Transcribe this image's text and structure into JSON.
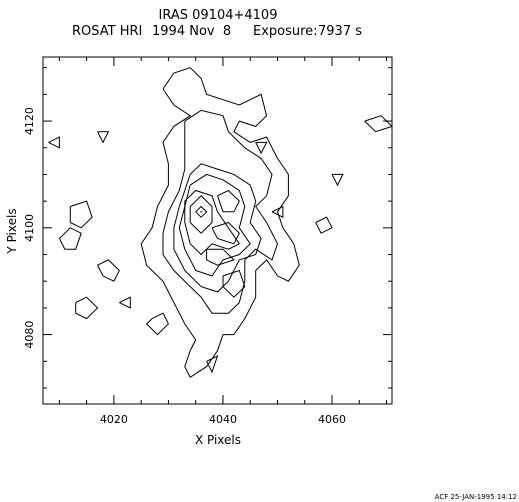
{
  "chart_data": {
    "type": "contour",
    "title": "IRAS 09104+4109",
    "subtitle": {
      "instrument": "ROSAT HRI",
      "date": "1994 Nov  8",
      "exposure_label": "Exposure:",
      "exposure_value": "7937 s"
    },
    "xlabel": "X Pixels",
    "ylabel": "Y Pixels",
    "xlim": [
      4007,
      4071
    ],
    "ylim": [
      4067,
      4132
    ],
    "xticks": [
      4020,
      4040,
      4060
    ],
    "yticks": [
      4080,
      4100,
      4120
    ],
    "grid": false,
    "footer": "ACF 25-JAN-1995 14:12",
    "peak": {
      "x": 4036,
      "y": 4103
    },
    "contours": [
      {
        "level": 1,
        "points": [
          [
            4029,
            4126
          ],
          [
            4031,
            4129
          ],
          [
            4034,
            4130
          ],
          [
            4036,
            4128
          ],
          [
            4037,
            4125
          ],
          [
            4040,
            4124
          ],
          [
            4043,
            4123
          ],
          [
            4045,
            4124
          ],
          [
            4047,
            4125
          ],
          [
            4048,
            4121
          ],
          [
            4046,
            4119
          ],
          [
            4043,
            4120
          ],
          [
            4042,
            4118
          ],
          [
            4045,
            4116
          ],
          [
            4048,
            4117
          ],
          [
            4050,
            4113
          ],
          [
            4052,
            4110
          ],
          [
            4052,
            4106
          ],
          [
            4050,
            4103
          ],
          [
            4051,
            4100
          ],
          [
            4053,
            4097
          ],
          [
            4054,
            4093
          ],
          [
            4052,
            4090
          ],
          [
            4050,
            4091
          ],
          [
            4048,
            4094
          ],
          [
            4046,
            4092
          ],
          [
            4046,
            4087
          ],
          [
            4044,
            4083
          ],
          [
            4042,
            4080
          ],
          [
            4040,
            4080
          ],
          [
            4039,
            4077
          ],
          [
            4037,
            4074
          ],
          [
            4034,
            4072
          ],
          [
            4033,
            4074
          ],
          [
            4034,
            4077
          ],
          [
            4035,
            4079
          ],
          [
            4033,
            4082
          ],
          [
            4031,
            4086
          ],
          [
            4029,
            4090
          ],
          [
            4026,
            4093
          ],
          [
            4025,
            4097
          ],
          [
            4027,
            4100
          ],
          [
            4028,
            4104
          ],
          [
            4030,
            4108
          ],
          [
            4030,
            4112
          ],
          [
            4029,
            4116
          ],
          [
            4031,
            4119
          ],
          [
            4034,
            4121
          ],
          [
            4031,
            4123
          ],
          [
            4029,
            4126
          ]
        ]
      },
      {
        "level": 2,
        "points": [
          [
            4033,
            4120
          ],
          [
            4036,
            4122
          ],
          [
            4040,
            4121
          ],
          [
            4041,
            4118
          ],
          [
            4044,
            4115
          ],
          [
            4047,
            4113
          ],
          [
            4049,
            4110
          ],
          [
            4048,
            4106
          ],
          [
            4046,
            4104
          ],
          [
            4048,
            4101
          ],
          [
            4050,
            4097
          ],
          [
            4049,
            4094
          ],
          [
            4046,
            4096
          ],
          [
            4044,
            4094
          ],
          [
            4044,
            4090
          ],
          [
            4043,
            4086
          ],
          [
            4041,
            4084
          ],
          [
            4038,
            4084
          ],
          [
            4036,
            4087
          ],
          [
            4034,
            4089
          ],
          [
            4031,
            4092
          ],
          [
            4029,
            4095
          ],
          [
            4029,
            4099
          ],
          [
            4030,
            4103
          ],
          [
            4032,
            4107
          ],
          [
            4033,
            4111
          ],
          [
            4033,
            4115
          ],
          [
            4033,
            4120
          ]
        ]
      },
      {
        "level": 3,
        "points": [
          [
            4034,
            4110
          ],
          [
            4036,
            4112
          ],
          [
            4039,
            4111
          ],
          [
            4042,
            4110
          ],
          [
            4045,
            4108
          ],
          [
            4046,
            4105
          ],
          [
            4045,
            4101
          ],
          [
            4047,
            4098
          ],
          [
            4046,
            4095
          ],
          [
            4043,
            4094
          ],
          [
            4041,
            4090
          ],
          [
            4039,
            4088
          ],
          [
            4036,
            4089
          ],
          [
            4033,
            4092
          ],
          [
            4031,
            4096
          ],
          [
            4031,
            4100
          ],
          [
            4032,
            4104
          ],
          [
            4033,
            4107
          ],
          [
            4034,
            4110
          ]
        ]
      },
      {
        "level": 4,
        "points": [
          [
            4034,
            4108
          ],
          [
            4037,
            4110
          ],
          [
            4040,
            4109
          ],
          [
            4043,
            4107
          ],
          [
            4044,
            4104
          ],
          [
            4043,
            4100
          ],
          [
            4045,
            4097
          ],
          [
            4043,
            4095
          ],
          [
            4040,
            4094
          ],
          [
            4038,
            4091
          ],
          [
            4035,
            4092
          ],
          [
            4033,
            4096
          ],
          [
            4032,
            4100
          ],
          [
            4033,
            4104
          ],
          [
            4034,
            4108
          ]
        ]
      },
      {
        "level": 5,
        "points": [
          [
            4033,
            4105
          ],
          [
            4035,
            4107
          ],
          [
            4038,
            4106
          ],
          [
            4039,
            4103
          ],
          [
            4041,
            4100
          ],
          [
            4043,
            4097
          ],
          [
            4041,
            4096
          ],
          [
            4038,
            4097
          ],
          [
            4036,
            4095
          ],
          [
            4034,
            4097
          ],
          [
            4033,
            4101
          ],
          [
            4033,
            4105
          ]
        ]
      },
      {
        "level": 6,
        "points": [
          [
            4034,
            4104
          ],
          [
            4036,
            4106
          ],
          [
            4038,
            4104
          ],
          [
            4038,
            4101
          ],
          [
            4036,
            4099
          ],
          [
            4034,
            4101
          ],
          [
            4034,
            4104
          ]
        ]
      },
      {
        "level": 7,
        "points": [
          [
            4035,
            4103
          ],
          [
            4036,
            4104
          ],
          [
            4037,
            4103
          ],
          [
            4036,
            4102
          ],
          [
            4035,
            4103
          ]
        ]
      },
      {
        "level": 2,
        "points": [
          [
            4039,
            4106
          ],
          [
            4041,
            4107
          ],
          [
            4043,
            4105
          ],
          [
            4042,
            4103
          ],
          [
            4040,
            4103
          ],
          [
            4039,
            4106
          ]
        ]
      },
      {
        "level": 2,
        "points": [
          [
            4038,
            4100
          ],
          [
            4041,
            4101
          ],
          [
            4043,
            4099
          ],
          [
            4042,
            4097
          ],
          [
            4039,
            4098
          ],
          [
            4038,
            4100
          ]
        ]
      },
      {
        "level": 2,
        "points": [
          [
            4037,
            4096
          ],
          [
            4040,
            4096
          ],
          [
            4042,
            4094
          ],
          [
            4039,
            4093
          ],
          [
            4037,
            4094
          ],
          [
            4037,
            4096
          ]
        ]
      },
      {
        "level": 2,
        "points": [
          [
            4040,
            4091
          ],
          [
            4043,
            4092
          ],
          [
            4044,
            4089
          ],
          [
            4042,
            4087
          ],
          [
            4040,
            4089
          ],
          [
            4040,
            4091
          ]
        ]
      },
      {
        "level": 2,
        "points": [
          [
            4046,
            4116
          ],
          [
            4048,
            4116
          ],
          [
            4047,
            4114
          ],
          [
            4046,
            4116
          ]
        ]
      },
      {
        "level": 1,
        "points": [
          [
            4012,
            4104
          ],
          [
            4015,
            4105
          ],
          [
            4016,
            4102
          ],
          [
            4014,
            4100
          ],
          [
            4012,
            4101
          ],
          [
            4012,
            4104
          ]
        ]
      },
      {
        "level": 1,
        "points": [
          [
            4010,
            4098
          ],
          [
            4012,
            4100
          ],
          [
            4014,
            4099
          ],
          [
            4013,
            4096
          ],
          [
            4011,
            4096
          ],
          [
            4010,
            4098
          ]
        ]
      },
      {
        "level": 1,
        "points": [
          [
            4013,
            4086
          ],
          [
            4015,
            4087
          ],
          [
            4017,
            4085
          ],
          [
            4015,
            4083
          ],
          [
            4013,
            4084
          ],
          [
            4013,
            4086
          ]
        ]
      },
      {
        "level": 1,
        "points": [
          [
            4017,
            4093
          ],
          [
            4019,
            4094
          ],
          [
            4021,
            4092
          ],
          [
            4020,
            4090
          ],
          [
            4018,
            4091
          ],
          [
            4017,
            4093
          ]
        ]
      },
      {
        "level": 1,
        "points": [
          [
            4027,
            4083
          ],
          [
            4029,
            4084
          ],
          [
            4030,
            4082
          ],
          [
            4028,
            4080
          ],
          [
            4026,
            4082
          ],
          [
            4027,
            4083
          ]
        ]
      },
      {
        "level": 1,
        "points": [
          [
            4017,
            4118
          ],
          [
            4019,
            4118
          ],
          [
            4018,
            4116
          ],
          [
            4017,
            4118
          ]
        ]
      },
      {
        "level": 1,
        "points": [
          [
            4008,
            4116
          ],
          [
            4010,
            4117
          ],
          [
            4010,
            4115
          ],
          [
            4008,
            4116
          ]
        ]
      },
      {
        "level": 1,
        "points": [
          [
            4060,
            4110
          ],
          [
            4062,
            4110
          ],
          [
            4061,
            4108
          ],
          [
            4060,
            4110
          ]
        ]
      },
      {
        "level": 1,
        "points": [
          [
            4066,
            4120
          ],
          [
            4069,
            4121
          ],
          [
            4071,
            4119
          ],
          [
            4068,
            4118
          ],
          [
            4066,
            4120
          ]
        ]
      },
      {
        "level": 1,
        "points": [
          [
            4057,
            4101
          ],
          [
            4059,
            4102
          ],
          [
            4060,
            4100
          ],
          [
            4058,
            4099
          ],
          [
            4057,
            4101
          ]
        ]
      },
      {
        "level": 1,
        "points": [
          [
            4021,
            4086
          ],
          [
            4023,
            4087
          ],
          [
            4023,
            4085
          ],
          [
            4021,
            4086
          ]
        ]
      },
      {
        "level": 1,
        "points": [
          [
            4049,
            4103
          ],
          [
            4051,
            4104
          ],
          [
            4051,
            4102
          ],
          [
            4049,
            4103
          ]
        ]
      },
      {
        "level": 1,
        "points": [
          [
            4037,
            4075
          ],
          [
            4039,
            4076
          ],
          [
            4038,
            4073
          ],
          [
            4037,
            4075
          ]
        ]
      }
    ]
  }
}
